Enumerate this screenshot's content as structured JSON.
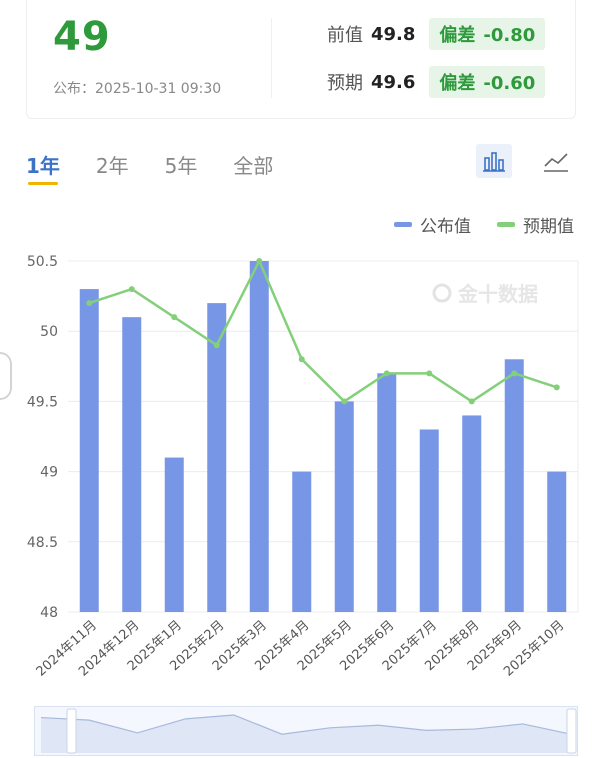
{
  "summary": {
    "value": "49",
    "published_label": "公布：",
    "published_time": "2025-10-31 09:30",
    "prev_label": "前值",
    "prev_value": "49.8",
    "prev_badge_label": "偏差",
    "prev_deviation": "-0.80",
    "forecast_label": "预期",
    "forecast_value": "49.6",
    "forecast_badge_label": "偏差",
    "forecast_deviation": "-0.60"
  },
  "tabs": [
    "1年",
    "2年",
    "5年",
    "全部"
  ],
  "active_tab": "1年",
  "icons": {
    "bar_toggle": "bar-chart-icon",
    "line_toggle": "line-chart-icon",
    "watermark": "jin10-logo-icon"
  },
  "watermark_text": "金十数据",
  "colors": {
    "actual": "#7896e6",
    "forecast": "#84d07a",
    "accent": "#3d73c7",
    "value_green": "#2e9a3c",
    "badge_bg": "#e6f5e8",
    "tab_underline": "#f0b400"
  },
  "chart_data": {
    "type": "bar",
    "categories": [
      "2024年11月",
      "2024年12月",
      "2025年1月",
      "2025年2月",
      "2025年3月",
      "2025年4月",
      "2025年5月",
      "2025年6月",
      "2025年7月",
      "2025年8月",
      "2025年9月",
      "2025年10月"
    ],
    "series": [
      {
        "name": "公布值",
        "type": "bar",
        "values": [
          50.3,
          50.1,
          49.1,
          50.2,
          50.5,
          49.0,
          49.5,
          49.7,
          49.3,
          49.4,
          49.8,
          49.0
        ]
      },
      {
        "name": "预期值",
        "type": "line",
        "values": [
          50.2,
          50.3,
          50.1,
          49.9,
          50.5,
          49.8,
          49.5,
          49.7,
          49.7,
          49.5,
          49.7,
          49.6
        ]
      }
    ],
    "ylim": [
      48,
      50.5
    ],
    "yticks": [
      "48",
      "48.5",
      "49",
      "49.5",
      "50",
      "50.5"
    ],
    "grid": true,
    "legend_position": "top-right"
  }
}
